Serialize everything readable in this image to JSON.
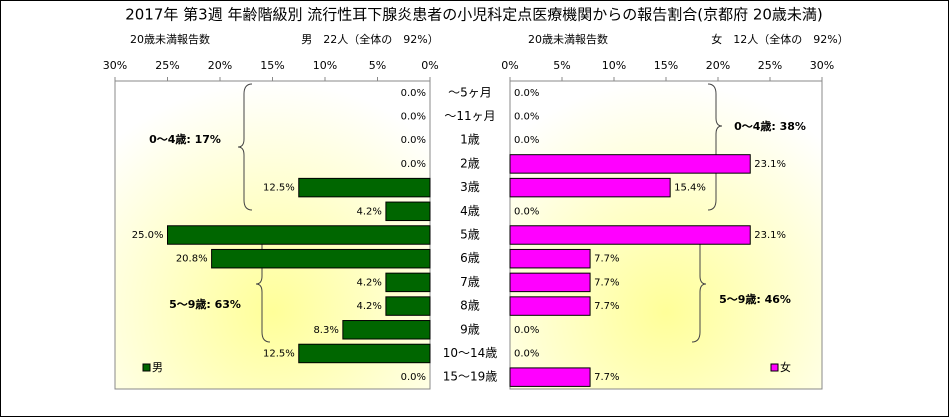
{
  "chart_data": {
    "type": "butterfly",
    "title": "2017年 第3週 年齢階級別 流行性耳下腺炎患者の小児科定点医療機関からの報告割合(京都府 20歳未満)",
    "subtitles": [
      "20歳未満報告数",
      "男　22人（全体の　92%）",
      "20歳未満報告数",
      "女　12人（全体の　92%）"
    ],
    "categories": [
      "～5ヶ月",
      "～11ヶ月",
      "1歳",
      "2歳",
      "3歳",
      "4歳",
      "5歳",
      "6歳",
      "7歳",
      "8歳",
      "9歳",
      "10～14歳",
      "15～19歳"
    ],
    "series": [
      {
        "name": "男",
        "color": "#006600",
        "values": [
          0,
          0,
          0,
          0,
          12.5,
          4.2,
          25.0,
          20.8,
          4.2,
          4.2,
          8.3,
          12.5,
          0
        ],
        "value_labels": [
          "0.0%",
          "0.0%",
          "0.0%",
          "0.0%",
          "12.5%",
          "4.2%",
          "25.0%",
          "20.8%",
          "4.2%",
          "4.2%",
          "8.3%",
          "12.5%",
          "0.0%"
        ]
      },
      {
        "name": "女",
        "color": "#ff00ff",
        "values": [
          0,
          0,
          0,
          23.1,
          15.4,
          0,
          23.1,
          7.7,
          7.7,
          7.7,
          0,
          0,
          7.7
        ],
        "value_labels": [
          "0.0%",
          "0.0%",
          "0.0%",
          "23.1%",
          "15.4%",
          "0.0%",
          "23.1%",
          "7.7%",
          "7.7%",
          "7.7%",
          "0.0%",
          "0.0%",
          "7.7%"
        ]
      }
    ],
    "xlim": [
      0,
      30
    ],
    "xticks": [
      {
        "value": 0,
        "label": "0%"
      },
      {
        "value": 5,
        "label": "5%"
      },
      {
        "value": 10,
        "label": "10%"
      },
      {
        "value": 15,
        "label": "15%"
      },
      {
        "value": 20,
        "label": "20%"
      },
      {
        "value": 25,
        "label": "25%"
      },
      {
        "value": 30,
        "label": "30%"
      }
    ],
    "annotations": [
      "0～4歳: 17%",
      "5～9歳: 63%",
      "0～4歳: 38%",
      "5～9歳: 46%"
    ]
  }
}
